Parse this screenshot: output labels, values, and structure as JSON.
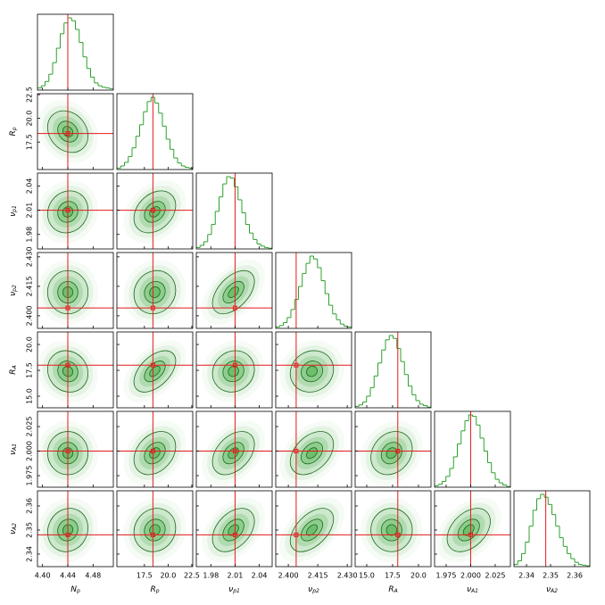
{
  "chart_data": {
    "type": "corner",
    "color": "#2ca02c",
    "truth_color": "#e41a1c",
    "hist_ylim": [
      0,
      100
    ],
    "params": [
      {
        "label": {
          "main": "N",
          "sub": "p"
        },
        "lim": [
          4.392,
          4.512
        ],
        "ticks": [
          {
            "value": 4.4,
            "label": "4.40"
          },
          4.44,
          4.48
        ],
        "truth": 4.44,
        "mean": 4.44,
        "std": 0.016,
        "corr": [],
        "hist": [
          3,
          6,
          12,
          22,
          38,
          58,
          78,
          93,
          100,
          96,
          84,
          66,
          46,
          30,
          18,
          10,
          6,
          4,
          3,
          2
        ]
      },
      {
        "label": {
          "main": "R",
          "sub": "p"
        },
        "lim": [
          14.6,
          22.6
        ],
        "ticks": [
          17.5,
          {
            "value": 20.0,
            "label": "20.0"
          },
          22.5
        ],
        "truth": 18.4,
        "mean": 18.6,
        "std": 1.1,
        "corr": [
          -0.2
        ],
        "hist": [
          2,
          5,
          10,
          18,
          30,
          46,
          62,
          80,
          94,
          100,
          92,
          78,
          60,
          42,
          28,
          16,
          9,
          5,
          3,
          2
        ]
      },
      {
        "label": {
          "main": "ν",
          "sub": "p1"
        },
        "lim": [
          1.962,
          2.056
        ],
        "ticks": [
          1.98,
          2.01,
          2.04
        ],
        "truth": 2.01,
        "mean": 2.008,
        "std": 0.013,
        "corr": [
          0.1,
          0.3
        ],
        "hist": [
          2,
          5,
          10,
          20,
          34,
          52,
          72,
          90,
          100,
          98,
          86,
          68,
          50,
          34,
          22,
          13,
          7,
          4,
          2,
          1
        ]
      },
      {
        "label": {
          "main": "ν",
          "sub": "p2"
        },
        "lim": [
          2.3936,
          2.4322
        ],
        "ticks": [
          {
            "value": 2.4,
            "label": "2.400"
          },
          2.415,
          {
            "value": 2.43,
            "label": "2.430"
          }
        ],
        "truth": 2.404,
        "mean": 2.412,
        "std": 0.0055,
        "corr": [
          0.0,
          0.1,
          0.5
        ],
        "hist": [
          2,
          4,
          8,
          15,
          26,
          40,
          58,
          76,
          90,
          100,
          96,
          84,
          66,
          48,
          32,
          20,
          12,
          6,
          3,
          2
        ]
      },
      {
        "label": {
          "main": "R",
          "sub": "A"
        },
        "lim": [
          13.88,
          21.21
        ],
        "ticks": [
          {
            "value": 15.0,
            "label": "15.0"
          },
          17.5,
          {
            "value": 20.0,
            "label": "20.0"
          }
        ],
        "truth": 18.0,
        "mean": 17.4,
        "std": 1.0,
        "corr": [
          -0.1,
          0.5,
          0.1,
          0.1
        ],
        "hist": [
          2,
          4,
          8,
          16,
          28,
          44,
          62,
          80,
          94,
          100,
          96,
          82,
          64,
          46,
          30,
          18,
          10,
          5,
          3,
          1
        ]
      },
      {
        "label": {
          "main": "ν",
          "sub": "A1"
        },
        "lim": [
          1.9632,
          2.0405
        ],
        "ticks": [
          1.975,
          {
            "value": 2.0,
            "label": "2.000"
          },
          2.025
        ],
        "truth": 2.0,
        "mean": 1.998,
        "std": 0.011,
        "corr": [
          0.0,
          0.3,
          0.4,
          0.4,
          0.2
        ],
        "hist": [
          2,
          4,
          8,
          15,
          26,
          42,
          60,
          78,
          92,
          100,
          98,
          86,
          68,
          50,
          34,
          20,
          11,
          6,
          3,
          1
        ]
      },
      {
        "label": {
          "main": "ν",
          "sub": "A2"
        },
        "lim": [
          2.3348,
          2.3663
        ],
        "ticks": [
          2.34,
          2.35,
          2.36
        ],
        "truth": 2.348,
        "mean": 2.35,
        "std": 0.0045,
        "corr": [
          0.1,
          0.1,
          0.4,
          0.5,
          0.0,
          0.4
        ],
        "hist": [
          3,
          8,
          18,
          34,
          56,
          78,
          94,
          100,
          96,
          86,
          72,
          56,
          40,
          28,
          18,
          11,
          6,
          3,
          2,
          1
        ]
      }
    ]
  }
}
